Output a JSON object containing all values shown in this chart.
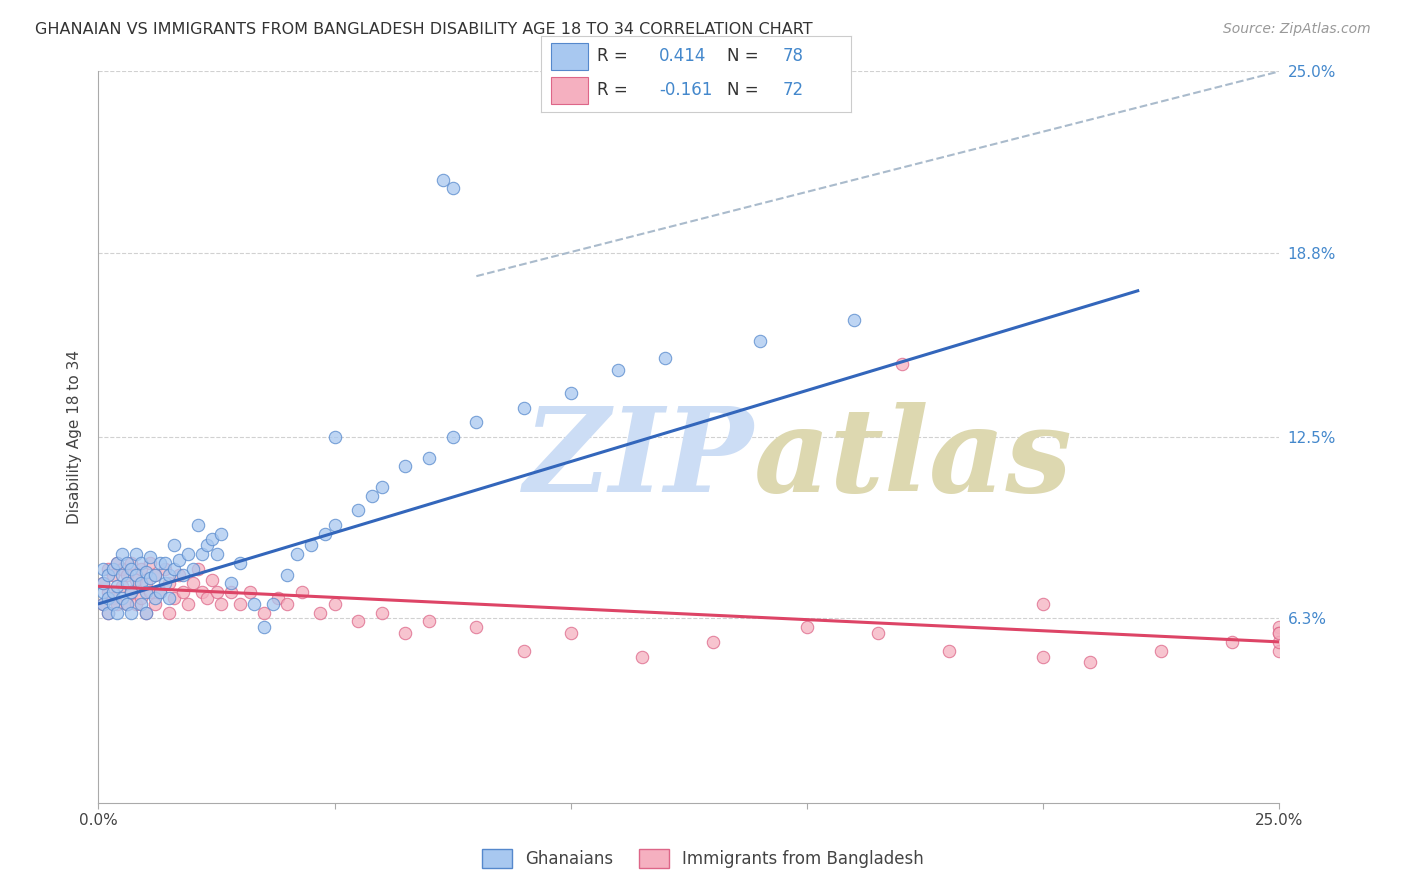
{
  "title": "GHANAIAN VS IMMIGRANTS FROM BANGLADESH DISABILITY AGE 18 TO 34 CORRELATION CHART",
  "source": "Source: ZipAtlas.com",
  "ylabel": "Disability Age 18 to 34",
  "xlim": [
    0.0,
    0.25
  ],
  "ylim": [
    0.0,
    0.25
  ],
  "ytick_vals": [
    0.063,
    0.125,
    0.188,
    0.25
  ],
  "ytick_labels": [
    "6.3%",
    "12.5%",
    "18.8%",
    "25.0%"
  ],
  "xtick_vals": [
    0.0,
    0.05,
    0.1,
    0.15,
    0.2,
    0.25
  ],
  "xtick_labels": [
    "0.0%",
    "",
    "",
    "",
    "",
    "25.0%"
  ],
  "blue_R": 0.414,
  "blue_N": 78,
  "pink_R": -0.161,
  "pink_N": 72,
  "blue_fill": "#a8c8f0",
  "pink_fill": "#f5b0c0",
  "blue_edge": "#5588cc",
  "pink_edge": "#dd6688",
  "blue_line": "#3366bb",
  "pink_line": "#dd4466",
  "dash_line": "#aabbcc",
  "grid_color": "#cccccc",
  "bg": "#ffffff",
  "label_blue": "Ghanaians",
  "label_pink": "Immigrants from Bangladesh",
  "blue_x": [
    0.001,
    0.001,
    0.001,
    0.001,
    0.002,
    0.002,
    0.002,
    0.003,
    0.003,
    0.003,
    0.004,
    0.004,
    0.004,
    0.005,
    0.005,
    0.005,
    0.006,
    0.006,
    0.006,
    0.007,
    0.007,
    0.007,
    0.008,
    0.008,
    0.009,
    0.009,
    0.009,
    0.01,
    0.01,
    0.01,
    0.011,
    0.011,
    0.012,
    0.012,
    0.013,
    0.013,
    0.014,
    0.014,
    0.015,
    0.015,
    0.016,
    0.016,
    0.017,
    0.018,
    0.019,
    0.02,
    0.021,
    0.022,
    0.023,
    0.024,
    0.025,
    0.026,
    0.028,
    0.03,
    0.033,
    0.035,
    0.037,
    0.04,
    0.042,
    0.045,
    0.048,
    0.05,
    0.055,
    0.058,
    0.06,
    0.065,
    0.07,
    0.075,
    0.08,
    0.09,
    0.1,
    0.11,
    0.12,
    0.14,
    0.16,
    0.073,
    0.075,
    0.05
  ],
  "blue_y": [
    0.072,
    0.075,
    0.068,
    0.08,
    0.07,
    0.078,
    0.065,
    0.072,
    0.08,
    0.068,
    0.074,
    0.082,
    0.065,
    0.07,
    0.078,
    0.085,
    0.068,
    0.075,
    0.082,
    0.072,
    0.08,
    0.065,
    0.078,
    0.085,
    0.068,
    0.075,
    0.082,
    0.072,
    0.079,
    0.065,
    0.077,
    0.084,
    0.07,
    0.078,
    0.072,
    0.082,
    0.075,
    0.082,
    0.07,
    0.078,
    0.08,
    0.088,
    0.083,
    0.078,
    0.085,
    0.08,
    0.095,
    0.085,
    0.088,
    0.09,
    0.085,
    0.092,
    0.075,
    0.082,
    0.068,
    0.06,
    0.068,
    0.078,
    0.085,
    0.088,
    0.092,
    0.095,
    0.1,
    0.105,
    0.108,
    0.115,
    0.118,
    0.125,
    0.13,
    0.135,
    0.14,
    0.148,
    0.152,
    0.158,
    0.165,
    0.213,
    0.21,
    0.125
  ],
  "pink_x": [
    0.001,
    0.001,
    0.002,
    0.002,
    0.002,
    0.003,
    0.003,
    0.004,
    0.004,
    0.005,
    0.005,
    0.006,
    0.006,
    0.007,
    0.007,
    0.008,
    0.008,
    0.009,
    0.009,
    0.01,
    0.01,
    0.011,
    0.011,
    0.012,
    0.012,
    0.013,
    0.014,
    0.015,
    0.015,
    0.016,
    0.017,
    0.018,
    0.019,
    0.02,
    0.021,
    0.022,
    0.023,
    0.024,
    0.025,
    0.026,
    0.028,
    0.03,
    0.032,
    0.035,
    0.038,
    0.04,
    0.043,
    0.047,
    0.05,
    0.055,
    0.06,
    0.065,
    0.07,
    0.08,
    0.09,
    0.1,
    0.115,
    0.13,
    0.15,
    0.165,
    0.18,
    0.2,
    0.21,
    0.225,
    0.24,
    0.25,
    0.25,
    0.25,
    0.25,
    0.25,
    0.2,
    0.17
  ],
  "pink_y": [
    0.075,
    0.068,
    0.08,
    0.072,
    0.065,
    0.078,
    0.07,
    0.082,
    0.068,
    0.074,
    0.08,
    0.068,
    0.078,
    0.072,
    0.082,
    0.068,
    0.076,
    0.07,
    0.08,
    0.065,
    0.075,
    0.082,
    0.072,
    0.068,
    0.078,
    0.072,
    0.08,
    0.065,
    0.075,
    0.07,
    0.078,
    0.072,
    0.068,
    0.075,
    0.08,
    0.072,
    0.07,
    0.076,
    0.072,
    0.068,
    0.072,
    0.068,
    0.072,
    0.065,
    0.07,
    0.068,
    0.072,
    0.065,
    0.068,
    0.062,
    0.065,
    0.058,
    0.062,
    0.06,
    0.052,
    0.058,
    0.05,
    0.055,
    0.06,
    0.058,
    0.052,
    0.05,
    0.048,
    0.052,
    0.055,
    0.06,
    0.058,
    0.052,
    0.055,
    0.058,
    0.068,
    0.15
  ],
  "blue_line_pts": [
    [
      0.0,
      0.068
    ],
    [
      0.22,
      0.175
    ]
  ],
  "pink_line_pts": [
    [
      0.0,
      0.074
    ],
    [
      0.25,
      0.055
    ]
  ],
  "dash_line_pts": [
    [
      0.08,
      0.18
    ],
    [
      0.25,
      0.25
    ]
  ],
  "marker_size": 80,
  "title_fontsize": 11.5,
  "tick_fontsize": 11,
  "ylabel_fontsize": 11
}
